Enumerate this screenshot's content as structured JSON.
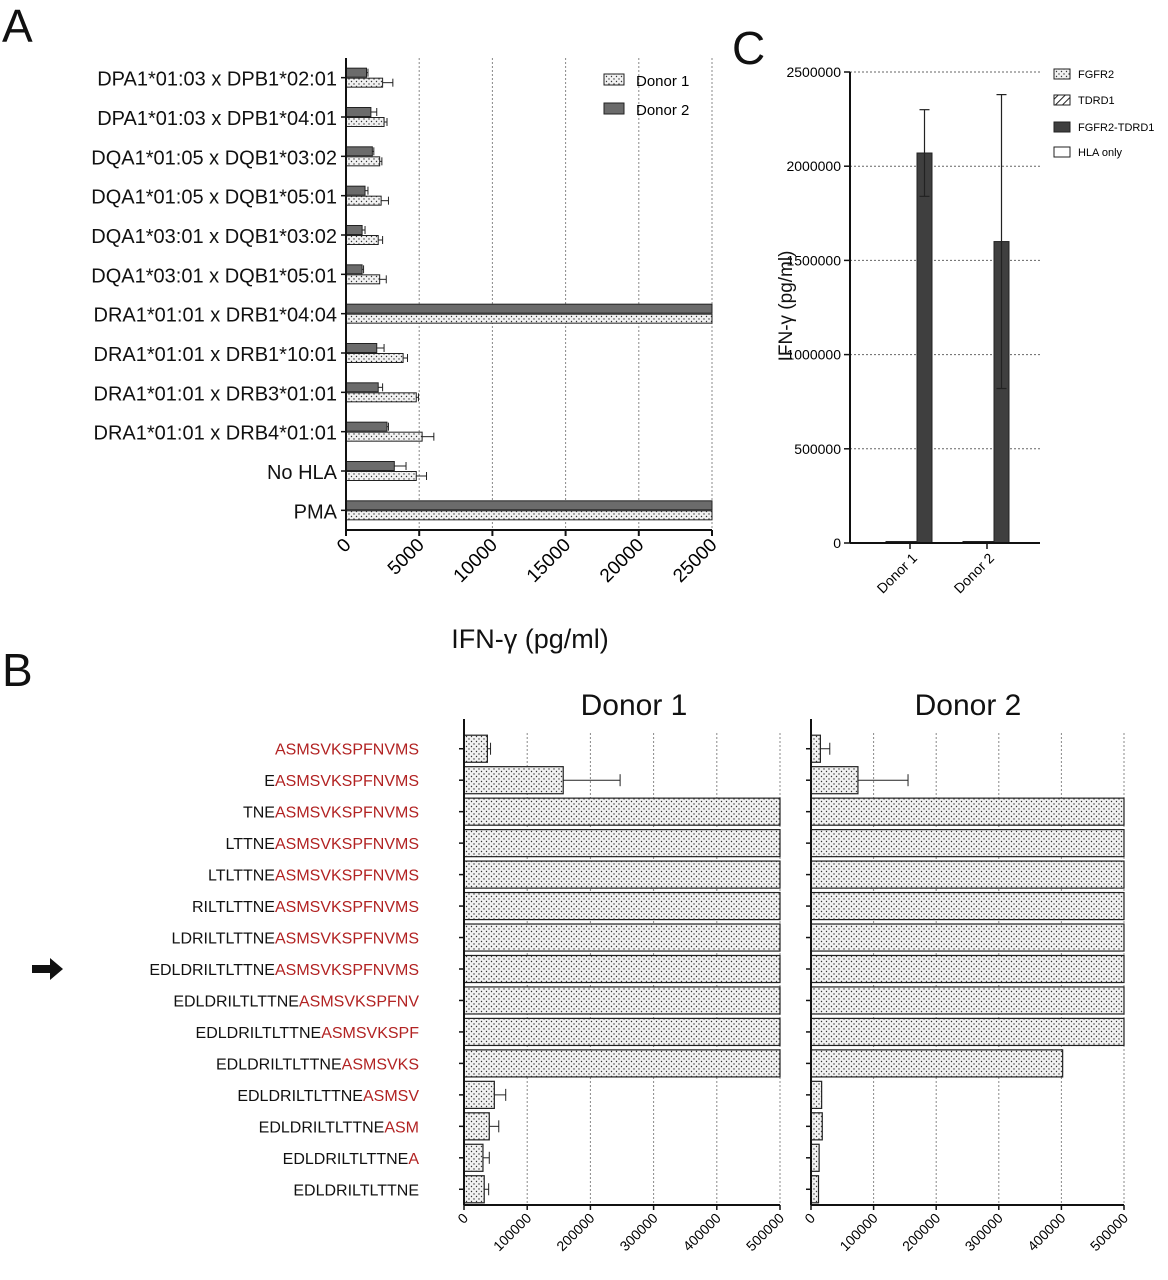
{
  "panels": {
    "a": "A",
    "b": "B",
    "c": "C"
  },
  "colors": {
    "donor1_fill": "#f2f2f2",
    "donor2_fill": "#6b6b6b",
    "dark_bar": "#3f3f3f",
    "peptide_red": "#b22222",
    "text": "#222222"
  },
  "chart_data": [
    {
      "panel": "A",
      "type": "bar",
      "orientation": "horizontal",
      "categories": [
        "DPA1*01:03 x DPB1*02:01",
        "DPA1*01:03 x DPB1*04:01",
        "DQA1*01:05 x DQB1*03:02",
        "DQA1*01:05 x DQB1*05:01",
        "DQA1*03:01 x DQB1*03:02",
        "DQA1*03:01 x DQB1*05:01",
        "DRA1*01:01 x DRB1*04:04",
        "DRA1*01:01 x DRB1*10:01",
        "DRA1*01:01 x DRB3*01:01",
        "DRA1*01:01 x DRB4*01:01",
        "No HLA",
        "PMA"
      ],
      "series": [
        {
          "name": "Donor 1",
          "pattern": "dots",
          "values": [
            2500,
            2600,
            2300,
            2400,
            2200,
            2300,
            25000,
            3900,
            4800,
            5200,
            4800,
            25000
          ],
          "errors": [
            700,
            200,
            150,
            500,
            300,
            450,
            0,
            300,
            150,
            800,
            700,
            0
          ]
        },
        {
          "name": "Donor 2",
          "pattern": "solid",
          "values": [
            1400,
            1700,
            1800,
            1300,
            1100,
            1100,
            25000,
            2100,
            2200,
            2800,
            3300,
            25000
          ],
          "errors": [
            100,
            400,
            100,
            200,
            200,
            100,
            0,
            500,
            300,
            100,
            800,
            0
          ]
        }
      ],
      "xlabel": "IFN-γ (pg/ml)",
      "xlim": [
        0,
        25000
      ],
      "xticks": [
        "0",
        "5000",
        "10000",
        "15000",
        "20000",
        "25000"
      ],
      "grid": "vertical dotted",
      "legend": "top-right"
    },
    {
      "panel": "C",
      "type": "bar",
      "categories": [
        "Donor 1",
        "Donor 2"
      ],
      "series": [
        {
          "name": "FGFR2",
          "pattern": "dots",
          "values": [
            8000,
            8000
          ],
          "errors": [
            0,
            0
          ]
        },
        {
          "name": "TDRD1",
          "pattern": "hatch",
          "values": [
            8000,
            8000
          ],
          "errors": [
            0,
            0
          ]
        },
        {
          "name": "FGFR2-TDRD1",
          "pattern": "solid",
          "values": [
            2070000,
            1600000
          ],
          "errors": [
            230000,
            780000
          ]
        },
        {
          "name": "HLA only",
          "pattern": "empty",
          "values": [
            0,
            0
          ],
          "errors": [
            0,
            0
          ]
        }
      ],
      "ylabel": "IFN-γ (pg/ml)",
      "ylim": [
        0,
        2500000
      ],
      "yticks": [
        "0",
        "500000",
        "1000000",
        "1500000",
        "2000000",
        "2500000"
      ],
      "grid": "horizontal dotted",
      "legend": "top-right"
    },
    {
      "panel": "B",
      "type": "bar",
      "orientation": "horizontal",
      "categories": [
        {
          "black": "",
          "red": "ASMSVKSPFNVMS"
        },
        {
          "black": "E",
          "red": "ASMSVKSPFNVMS"
        },
        {
          "black": "TNE",
          "red": "ASMSVKSPFNVMS"
        },
        {
          "black": "LTTNE",
          "red": "ASMSVKSPFNVMS"
        },
        {
          "black": "LTLTTNE",
          "red": "ASMSVKSPFNVMS"
        },
        {
          "black": "RILTLTTNE",
          "red": "ASMSVKSPFNVMS"
        },
        {
          "black": "LDRILTLTTNE",
          "red": "ASMSVKSPFNVMS"
        },
        {
          "black": "EDLDRILTLTTNE",
          "red": "ASMSVKSPFNVMS"
        },
        {
          "black": "EDLDRILTLTTNE",
          "red": "ASMSVKSPFNV"
        },
        {
          "black": "EDLDRILTLTTNE",
          "red": "ASMSVKSPF"
        },
        {
          "black": "EDLDRILTLTTNE",
          "red": "ASMSVKS"
        },
        {
          "black": "EDLDRILTLTTNE",
          "red": "ASMSV"
        },
        {
          "black": "EDLDRILTLTTNE",
          "red": "ASM"
        },
        {
          "black": "EDLDRILTLTTNE",
          "red": "A"
        },
        {
          "black": "EDLDRILTLTTNE",
          "red": ""
        }
      ],
      "highlight_index": 7,
      "xlim": [
        0,
        500000
      ],
      "xticks": [
        "0",
        "100000",
        "200000",
        "300000",
        "400000",
        "500000"
      ],
      "grid": "vertical dotted",
      "subplots": [
        {
          "title": "Donor 1",
          "values": [
            37000,
            157000,
            500000,
            500000,
            500000,
            500000,
            500000,
            500000,
            500000,
            500000,
            500000,
            48000,
            40000,
            30000,
            32000
          ],
          "errors": [
            5000,
            90000,
            0,
            0,
            0,
            0,
            0,
            0,
            0,
            0,
            0,
            18000,
            15000,
            10000,
            7000
          ]
        },
        {
          "title": "Donor 2",
          "values": [
            15000,
            75000,
            500000,
            500000,
            500000,
            500000,
            500000,
            500000,
            500000,
            500000,
            402000,
            17000,
            18000,
            13000,
            12000
          ],
          "errors": [
            15000,
            80000,
            0,
            0,
            0,
            0,
            0,
            0,
            0,
            0,
            0,
            0,
            0,
            0,
            0
          ]
        }
      ]
    }
  ]
}
